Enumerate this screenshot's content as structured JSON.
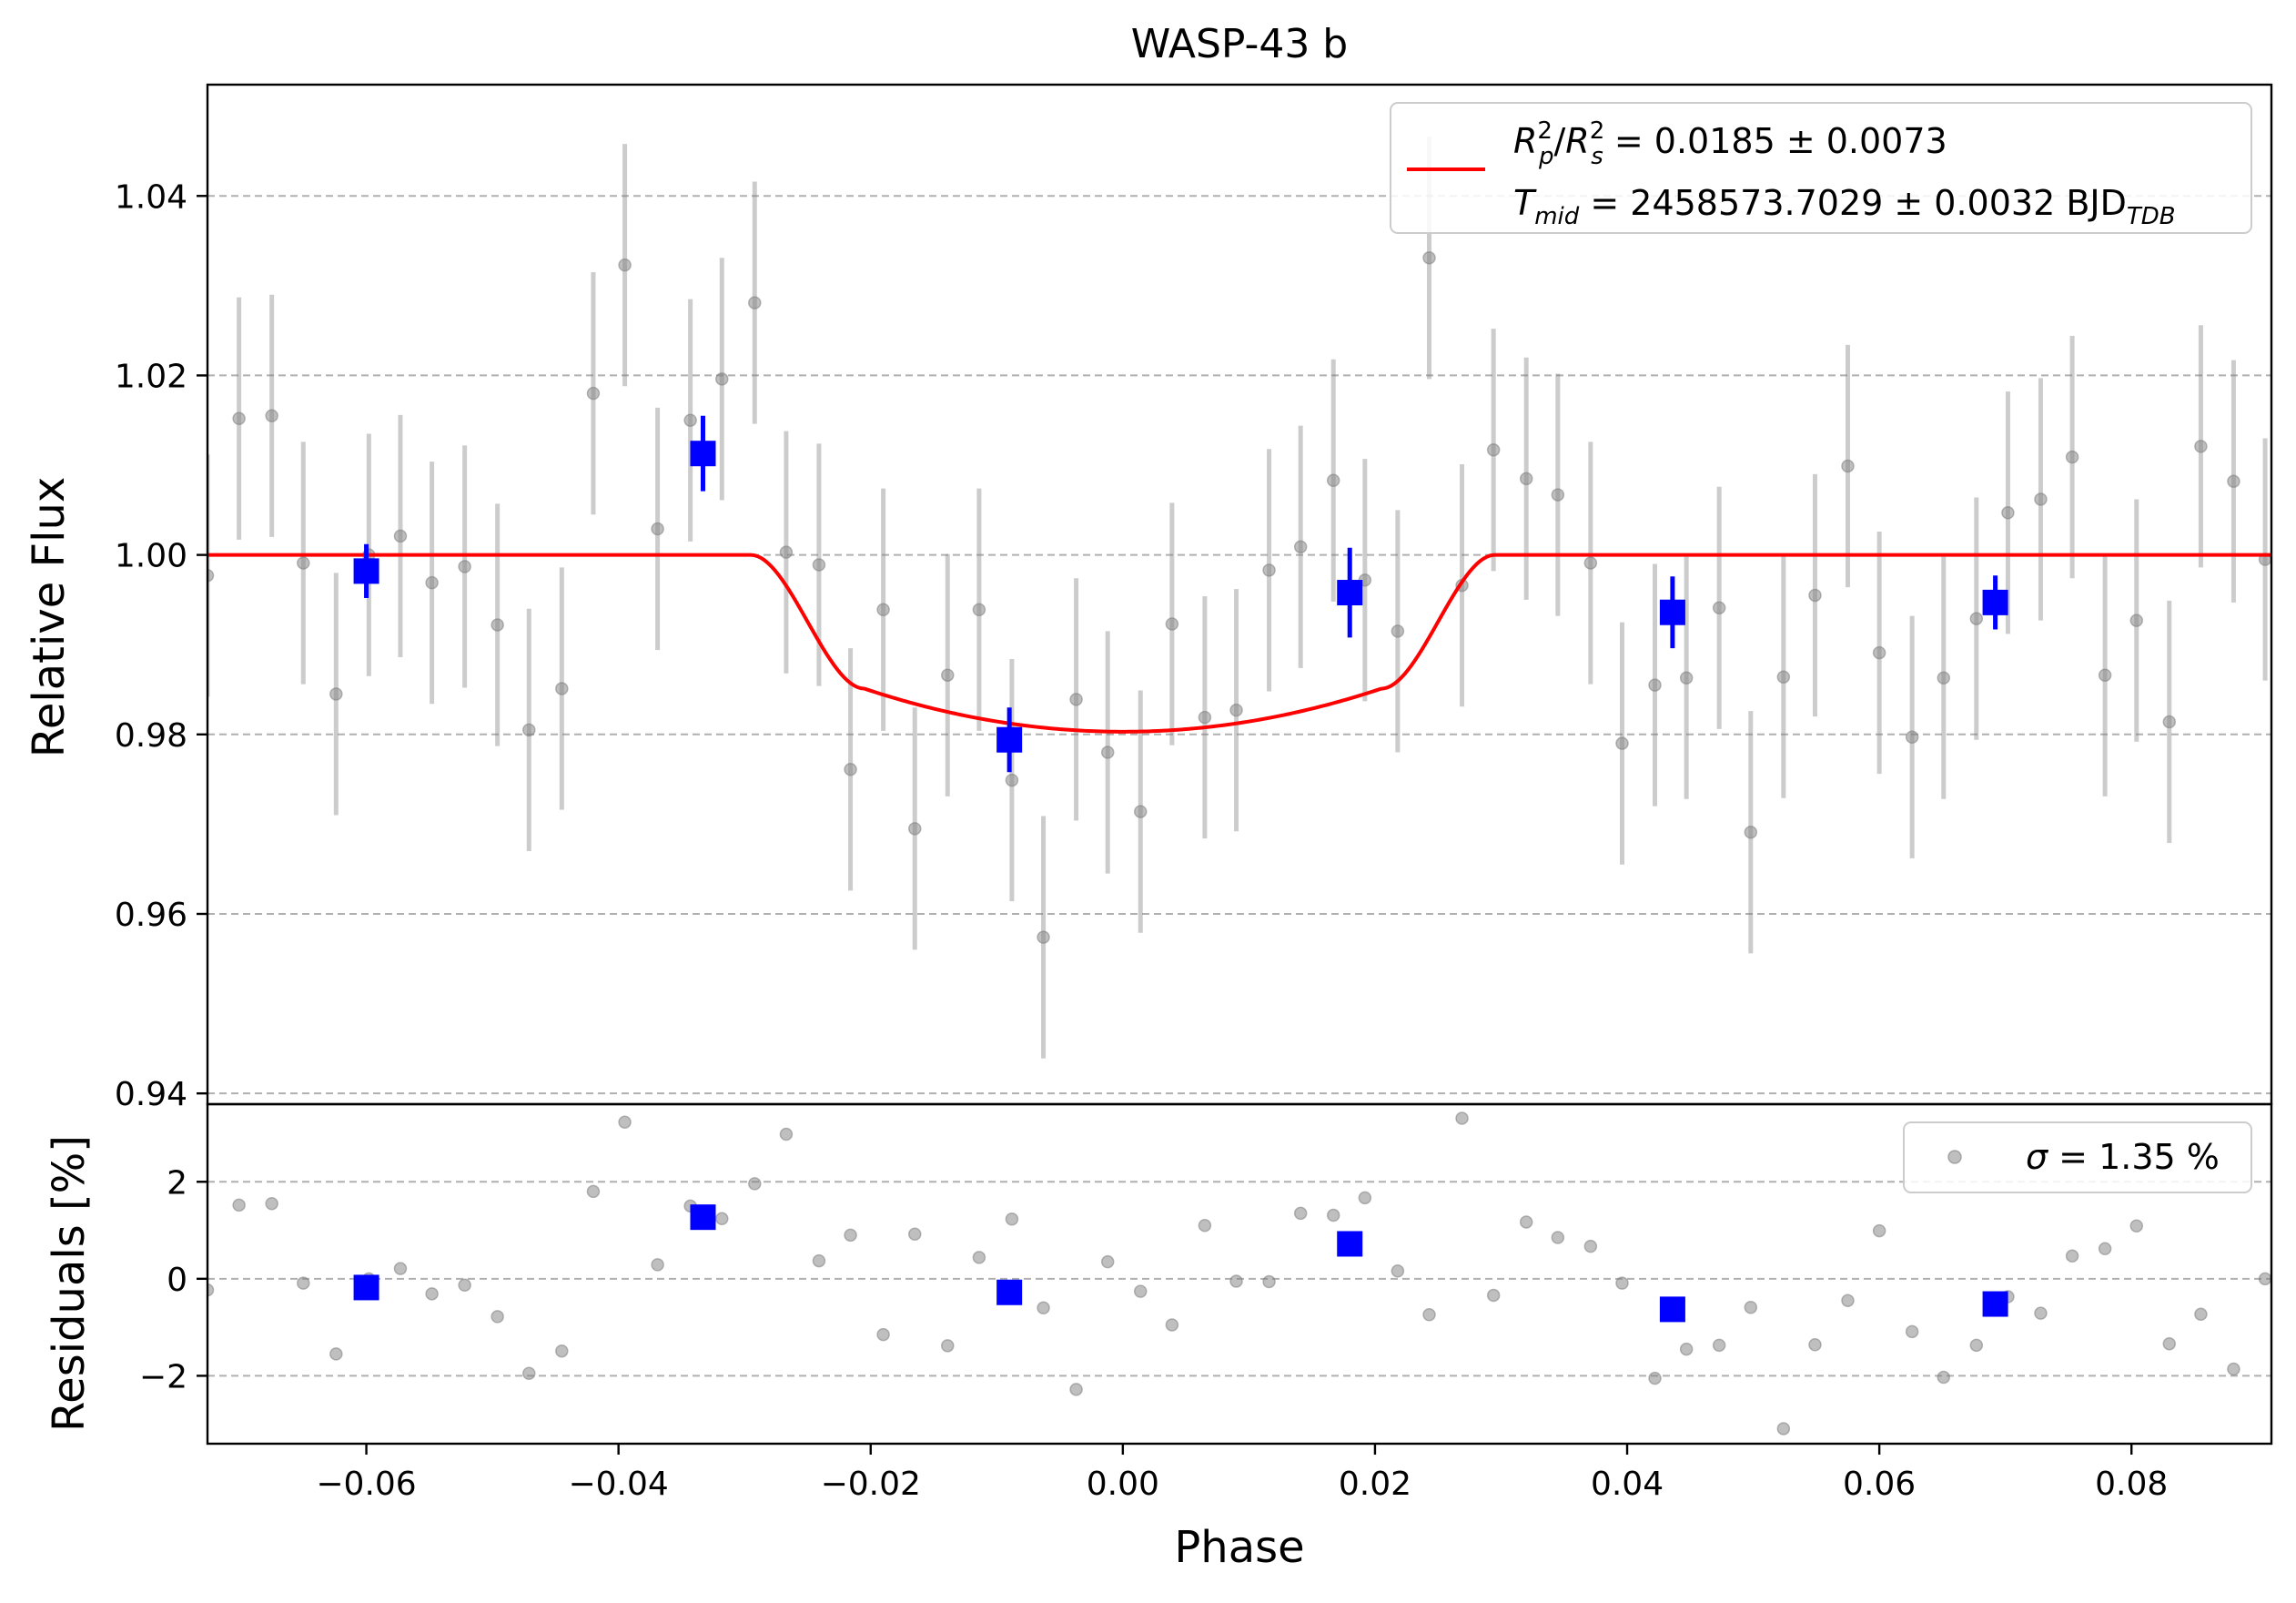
{
  "chart_data": {
    "type": "scatter",
    "title": "WASP-43 b",
    "xlabel": "Phase",
    "top_panel": {
      "ylabel": "Relative Flux",
      "xlim": [
        -0.0726,
        0.0911
      ],
      "ylim": [
        0.9388,
        1.0524
      ],
      "yticks": [
        0.94,
        0.96,
        0.98,
        1.0,
        1.02,
        1.04
      ],
      "ytick_labels": [
        "0.94",
        "0.96",
        "0.98",
        "1.00",
        "1.02",
        "1.04"
      ],
      "grid": "horizontal dashed",
      "legend_position": "upper-right",
      "legend": {
        "line1_base": "R",
        "line1_sub1": "p",
        "line1_sup1": "2",
        "line1_sep": "/",
        "line1_base2": "R",
        "line1_sub2": "s",
        "line1_sup2": "2",
        "line1_value": " = 0.0185 ± 0.0073",
        "line2_base": "T",
        "line2_sub": "mid",
        "line2_value": " = 2458573.7029 ± 0.0032 BJD",
        "line2_unit_sub": "TDB"
      },
      "model": {
        "name": "transit model",
        "color": "#ff0000",
        "depth": 0.0197,
        "t1": 0.0295,
        "t2": 0.0205
      },
      "raw_points": {
        "color": "#808080",
        "x": [
          -0.0726,
          -0.0701,
          -0.0675,
          -0.065,
          -0.0624,
          -0.0598,
          -0.0573,
          -0.0548,
          -0.0522,
          -0.0496,
          -0.0471,
          -0.0445,
          -0.042,
          -0.0395,
          -0.0369,
          -0.0343,
          -0.0318,
          -0.0292,
          -0.0267,
          -0.0241,
          -0.0216,
          -0.019,
          -0.0165,
          -0.0139,
          -0.0114,
          -0.0088,
          -0.0063,
          -0.0037,
          -0.0012,
          0.0014,
          0.0039,
          0.0065,
          0.009,
          0.0116,
          0.0141,
          0.0167,
          0.0192,
          0.0218,
          0.0243,
          0.0269,
          0.0294,
          0.032,
          0.0345,
          0.0371,
          0.0396,
          0.0422,
          0.0447,
          0.0473,
          0.0498,
          0.0524,
          0.0549,
          0.0575,
          0.06,
          0.0626,
          0.0651,
          0.0677,
          0.0702,
          0.0728,
          0.0753,
          0.0779,
          0.0804,
          0.083,
          0.0855,
          0.0881,
          0.0906
        ],
        "y": [
          0.9977,
          1.0152,
          1.0155,
          0.9991,
          0.9845,
          1.0,
          1.0021,
          0.9969,
          0.9987,
          0.9922,
          0.9805,
          0.9851,
          1.018,
          1.0323,
          1.0029,
          1.015,
          1.0196,
          1.0281,
          1.0003,
          0.9989,
          0.9761,
          0.9939,
          0.9695,
          0.9866,
          0.9939,
          0.9749,
          0.9574,
          0.9839,
          0.978,
          0.9714,
          0.9923,
          0.9819,
          0.9827,
          0.9983,
          1.0009,
          1.0083,
          0.9972,
          0.9915,
          1.0331,
          0.9966,
          1.0117,
          1.0085,
          1.0067,
          0.9991,
          0.979,
          0.9855,
          0.9863,
          0.9941,
          0.9691,
          0.9864,
          0.9955,
          1.0099,
          0.9891,
          0.9797,
          0.9863,
          0.9929,
          1.0047,
          1.0062,
          1.0109,
          0.9866,
          0.9927,
          0.9814,
          1.0121,
          1.0082,
          0.9995
        ],
        "yerr": [
          0.0135,
          0.0135,
          0.0135,
          0.0135,
          0.0135,
          0.0135,
          0.0135,
          0.0135,
          0.0135,
          0.0135,
          0.0135,
          0.0135,
          0.0135,
          0.0135,
          0.0135,
          0.0135,
          0.0135,
          0.0135,
          0.0135,
          0.0135,
          0.0135,
          0.0135,
          0.0135,
          0.0135,
          0.0135,
          0.0135,
          0.0135,
          0.0135,
          0.0135,
          0.0135,
          0.0135,
          0.0135,
          0.0135,
          0.0135,
          0.0135,
          0.0135,
          0.0135,
          0.0135,
          0.0135,
          0.0135,
          0.0135,
          0.0135,
          0.0135,
          0.0135,
          0.0135,
          0.0135,
          0.0135,
          0.0135,
          0.0135,
          0.0135,
          0.0135,
          0.0135,
          0.0135,
          0.0135,
          0.0135,
          0.0135,
          0.0135,
          0.0135,
          0.0135,
          0.0135,
          0.0135,
          0.0135,
          0.0135,
          0.0135,
          0.0135
        ]
      },
      "binned_points": {
        "color": "#0000ff",
        "x": [
          -0.06,
          -0.0333,
          -0.009,
          0.018,
          0.0436,
          0.0692
        ],
        "y": [
          0.9982,
          1.0113,
          0.9794,
          0.9958,
          0.9936,
          0.9947
        ],
        "yerr": [
          0.003,
          0.0042,
          0.0036,
          0.005,
          0.004,
          0.003
        ]
      }
    },
    "bottom_panel": {
      "ylabel": "Residuals [%]",
      "ylim": [
        -3.4,
        3.6
      ],
      "yticks": [
        -2,
        0,
        2
      ],
      "ytick_labels": [
        "−2",
        "0",
        "2"
      ],
      "grid": "horizontal dashed",
      "legend_position": "upper-right",
      "legend": {
        "sigma_symbol": "σ",
        "sigma_text": " = 1.35 %"
      },
      "raw_residuals": {
        "color": "#808080",
        "x": [
          -0.0726,
          -0.0701,
          -0.0675,
          -0.065,
          -0.0624,
          -0.0598,
          -0.0573,
          -0.0548,
          -0.0522,
          -0.0496,
          -0.0471,
          -0.0445,
          -0.042,
          -0.0395,
          -0.0369,
          -0.0343,
          -0.0318,
          -0.0292,
          -0.0267,
          -0.0241,
          -0.0216,
          -0.019,
          -0.0165,
          -0.0139,
          -0.0114,
          -0.0088,
          -0.0063,
          -0.0037,
          -0.0012,
          0.0014,
          0.0039,
          0.0065,
          0.009,
          0.0116,
          0.0141,
          0.0167,
          0.0192,
          0.0218,
          0.0243,
          0.0269,
          0.0294,
          0.032,
          0.0345,
          0.0371,
          0.0396,
          0.0422,
          0.0447,
          0.0473,
          0.0498,
          0.0524,
          0.0549,
          0.0575,
          0.06,
          0.0626,
          0.0651,
          0.0677,
          0.0702,
          0.0728,
          0.0753,
          0.0779,
          0.0804,
          0.083,
          0.0855,
          0.0881,
          0.0906
        ],
        "y": [
          -0.23,
          1.52,
          1.55,
          -0.09,
          -1.55,
          0.0,
          0.21,
          -0.31,
          -0.13,
          -0.78,
          -1.95,
          -1.49,
          1.8,
          3.23,
          0.29,
          1.5,
          1.24,
          1.96,
          2.98,
          0.37,
          0.9,
          -1.15,
          0.92,
          -1.38,
          0.44,
          1.23,
          -0.6,
          -2.28,
          0.35,
          -0.26,
          -0.95,
          1.1,
          -0.05,
          -0.06,
          1.35,
          1.31,
          1.67,
          0.16,
          -0.74,
          3.31,
          -0.34,
          1.17,
          0.85,
          0.67,
          -0.09,
          -2.05,
          -1.45,
          -1.37,
          -0.59,
          -3.09,
          -1.36,
          -0.45,
          0.99,
          -1.09,
          -2.03,
          -1.37,
          -0.37,
          -0.71,
          0.47,
          0.62,
          1.09,
          -1.34,
          -0.73,
          -1.86,
          0.0
        ]
      },
      "binned_residuals": {
        "color": "#0000ff",
        "x": [
          -0.06,
          -0.0333,
          -0.009,
          0.018,
          0.0436,
          0.0692
        ],
        "y": [
          -0.18,
          1.27,
          -0.28,
          0.72,
          -0.63,
          -0.52
        ]
      }
    },
    "xticks": [
      -0.06,
      -0.04,
      -0.02,
      0.0,
      0.02,
      0.04,
      0.06,
      0.08
    ],
    "xtick_labels": [
      "−0.06",
      "−0.04",
      "−0.02",
      "0.00",
      "0.02",
      "0.04",
      "0.06",
      "0.08"
    ]
  }
}
